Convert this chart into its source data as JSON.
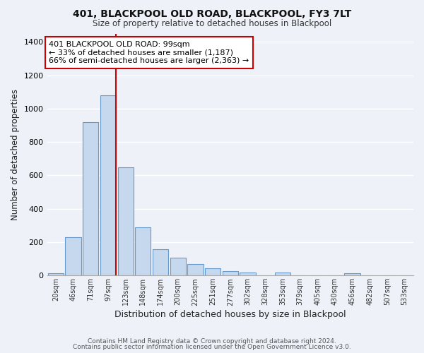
{
  "title": "401, BLACKPOOL OLD ROAD, BLACKPOOL, FY3 7LT",
  "subtitle": "Size of property relative to detached houses in Blackpool",
  "xlabel": "Distribution of detached houses by size in Blackpool",
  "ylabel": "Number of detached properties",
  "bar_labels": [
    "20sqm",
    "46sqm",
    "71sqm",
    "97sqm",
    "123sqm",
    "148sqm",
    "174sqm",
    "200sqm",
    "225sqm",
    "251sqm",
    "277sqm",
    "302sqm",
    "328sqm",
    "353sqm",
    "379sqm",
    "405sqm",
    "430sqm",
    "456sqm",
    "482sqm",
    "507sqm",
    "533sqm"
  ],
  "bar_values": [
    15,
    228,
    920,
    1080,
    650,
    290,
    158,
    105,
    68,
    42,
    27,
    20,
    0,
    18,
    0,
    0,
    0,
    15,
    0,
    0,
    0
  ],
  "bar_color": "#c5d8ee",
  "bar_edge_color": "#6699cc",
  "vline_color": "#cc0000",
  "vline_index": 3,
  "ylim": [
    0,
    1450
  ],
  "yticks": [
    0,
    200,
    400,
    600,
    800,
    1000,
    1200,
    1400
  ],
  "annotation_title": "401 BLACKPOOL OLD ROAD: 99sqm",
  "annotation_line1": "← 33% of detached houses are smaller (1,187)",
  "annotation_line2": "66% of semi-detached houses are larger (2,363) →",
  "footer1": "Contains HM Land Registry data © Crown copyright and database right 2024.",
  "footer2": "Contains public sector information licensed under the Open Government Licence v3.0.",
  "bg_color": "#eef2f8",
  "grid_color": "#ffffff",
  "axis_label_color": "#222222",
  "tick_label_color": "#333333"
}
